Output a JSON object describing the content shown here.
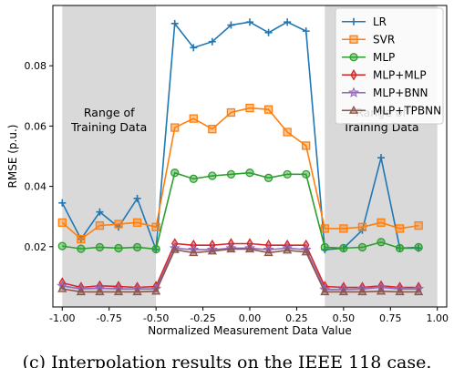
{
  "chart_data": {
    "type": "line",
    "title": "",
    "xlabel": "Normalized Measurement Data Value",
    "ylabel": "RMSE (p.u.)",
    "xlim": [
      -1.05,
      1.05
    ],
    "ylim": [
      0.0,
      0.1
    ],
    "x_ticks": [
      "-1.00",
      "-0.75",
      "-0.50",
      "-0.25",
      "0.00",
      "0.25",
      "0.50",
      "0.75",
      "1.00"
    ],
    "x_tick_values": [
      -1.0,
      -0.75,
      -0.5,
      -0.25,
      0.0,
      0.25,
      0.5,
      0.75,
      1.0
    ],
    "y_ticks": [
      "0.02",
      "0.04",
      "0.06",
      "0.08"
    ],
    "y_tick_values": [
      0.02,
      0.04,
      0.06,
      0.08
    ],
    "shaded_regions": [
      {
        "label": "Range of Training Data",
        "x_range": [
          -1.0,
          -0.5
        ]
      },
      {
        "label": "Range of Training Data",
        "x_range": [
          0.4,
          1.0
        ]
      }
    ],
    "legend_position": "top-right",
    "x": [
      -1.0,
      -0.95,
      -0.9,
      -0.85,
      -0.8,
      -0.75,
      -0.7,
      -0.65,
      -0.6,
      -0.55,
      -0.5,
      -0.45,
      -0.4,
      -0.35,
      -0.3,
      -0.25,
      -0.2,
      -0.15,
      -0.1,
      -0.05,
      0.0,
      0.05,
      0.1,
      0.15,
      0.2,
      0.25,
      0.3,
      0.35,
      0.4,
      0.45,
      0.5,
      0.55,
      0.6,
      0.65,
      0.7,
      0.75,
      0.8,
      0.85,
      0.9,
      0.95,
      1.0
    ],
    "series": [
      {
        "name": "LR",
        "color": "#1f77b4",
        "marker": "plus",
        "x": [
          -1.0,
          -0.9,
          -0.8,
          -0.7,
          -0.6,
          -0.5,
          -0.4,
          -0.3,
          -0.2,
          -0.1,
          0.0,
          0.1,
          0.2,
          0.3,
          0.4,
          0.5,
          0.6,
          0.7,
          0.8,
          0.9
        ],
        "values": [
          0.0345,
          0.0225,
          0.0315,
          0.0265,
          0.036,
          0.019,
          0.094,
          0.086,
          0.088,
          0.0935,
          0.0945,
          0.091,
          0.0945,
          0.0915,
          0.019,
          0.0195,
          0.0255,
          0.0495,
          0.0195,
          0.0195
        ]
      },
      {
        "name": "SVR",
        "color": "#ff7f0e",
        "marker": "square",
        "x": [
          -1.0,
          -0.9,
          -0.8,
          -0.7,
          -0.6,
          -0.5,
          -0.4,
          -0.3,
          -0.2,
          -0.1,
          0.0,
          0.1,
          0.2,
          0.3,
          0.4,
          0.5,
          0.6,
          0.7,
          0.8,
          0.9
        ],
        "values": [
          0.028,
          0.0225,
          0.027,
          0.0275,
          0.028,
          0.0265,
          0.0595,
          0.0625,
          0.059,
          0.0645,
          0.066,
          0.0655,
          0.058,
          0.0535,
          0.026,
          0.026,
          0.0265,
          0.028,
          0.026,
          0.027
        ]
      },
      {
        "name": "MLP",
        "color": "#2ca02c",
        "marker": "circle",
        "x": [
          -1.0,
          -0.9,
          -0.8,
          -0.7,
          -0.6,
          -0.5,
          -0.4,
          -0.3,
          -0.2,
          -0.1,
          0.0,
          0.1,
          0.2,
          0.3,
          0.4,
          0.5,
          0.6,
          0.7,
          0.8,
          0.9
        ],
        "values": [
          0.0202,
          0.0193,
          0.0198,
          0.0195,
          0.0198,
          0.0192,
          0.0445,
          0.0425,
          0.0435,
          0.044,
          0.0445,
          0.0428,
          0.044,
          0.044,
          0.0198,
          0.0195,
          0.0198,
          0.0215,
          0.0195,
          0.0198
        ]
      },
      {
        "name": "MLP+MLP",
        "color": "#d62728",
        "marker": "diamond",
        "x": [
          -1.0,
          -0.9,
          -0.8,
          -0.7,
          -0.6,
          -0.5,
          -0.4,
          -0.3,
          -0.2,
          -0.1,
          0.0,
          0.1,
          0.2,
          0.3,
          0.4,
          0.5,
          0.6,
          0.7,
          0.8,
          0.9
        ],
        "values": [
          0.008,
          0.0065,
          0.007,
          0.0068,
          0.0065,
          0.0068,
          0.021,
          0.0205,
          0.0205,
          0.021,
          0.021,
          0.0205,
          0.0205,
          0.0205,
          0.0068,
          0.0065,
          0.0065,
          0.007,
          0.0065,
          0.0065
        ]
      },
      {
        "name": "MLP+BNN",
        "color": "#9467bd",
        "marker": "star",
        "x": [
          -1.0,
          -0.9,
          -0.8,
          -0.7,
          -0.6,
          -0.5,
          -0.4,
          -0.3,
          -0.2,
          -0.1,
          0.0,
          0.1,
          0.2,
          0.3,
          0.4,
          0.5,
          0.6,
          0.7,
          0.8,
          0.9
        ],
        "values": [
          0.007,
          0.006,
          0.0062,
          0.006,
          0.006,
          0.006,
          0.0195,
          0.019,
          0.019,
          0.0195,
          0.0195,
          0.019,
          0.0195,
          0.019,
          0.0058,
          0.0058,
          0.006,
          0.0065,
          0.006,
          0.006
        ]
      },
      {
        "name": "MLP+TPBNN",
        "color": "#8c564b",
        "marker": "triangle",
        "x": [
          -1.0,
          -0.9,
          -0.8,
          -0.7,
          -0.6,
          -0.5,
          -0.4,
          -0.3,
          -0.2,
          -0.1,
          0.0,
          0.1,
          0.2,
          0.3,
          0.4,
          0.5,
          0.6,
          0.7,
          0.8,
          0.9
        ],
        "values": [
          0.006,
          0.005,
          0.005,
          0.005,
          0.005,
          0.0052,
          0.019,
          0.018,
          0.0185,
          0.0192,
          0.0192,
          0.018,
          0.0188,
          0.0182,
          0.005,
          0.005,
          0.005,
          0.0052,
          0.005,
          0.005
        ]
      }
    ]
  },
  "caption": "(c) Interpolation results on the IEEE 118 case."
}
